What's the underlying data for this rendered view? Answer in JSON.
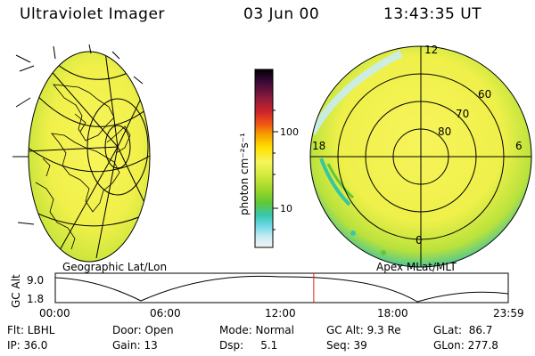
{
  "header": {
    "title": "Ultraviolet Imager",
    "date": "03 Jun 00",
    "time": "13:43:35 UT"
  },
  "colorbar": {
    "unit_label": "photon cm⁻²s⁻¹",
    "ticks": [
      "100",
      "10"
    ],
    "colors": [
      "#000000",
      "#3a0a3a",
      "#8b1b3b",
      "#d0242a",
      "#f05a12",
      "#f7a300",
      "#ffe000",
      "#f6f55a",
      "#cfe83a",
      "#9ad628",
      "#5fc838",
      "#38c6b0",
      "#6fd8e6",
      "#c9ecf2",
      "#f4f4f4"
    ]
  },
  "panels": {
    "left_caption": "Geographic Lat/Lon",
    "right_caption": "Apex MLat/MLT",
    "right_labels": {
      "lat_60": "60",
      "lat_70": "70",
      "lat_80": "80",
      "mlt_12": "12",
      "mlt_18": "18",
      "mlt_6": "6",
      "mlt_0": "0"
    }
  },
  "timeline": {
    "ylabel": "GC Alt",
    "ytick_top": "9.0",
    "ytick_bottom": "1.8",
    "xticks": [
      "00:00",
      "06:00",
      "12:00",
      "18:00",
      "23:59"
    ],
    "current_time_fraction": 0.5706,
    "marker_color": "#e0201c"
  },
  "status": {
    "row1": {
      "filter": "Flt: LBHL",
      "door": "Door: Open",
      "mode": "Mode: Normal",
      "gc_alt": "GC Alt: 9.3 Re",
      "glat": "GLat:  86.7"
    },
    "row2": {
      "ip": "IP: 36.0",
      "gain": "Gain: 13",
      "dsp": "Dsp:     5.1",
      "seq": "Seq: 39",
      "glon": "GLon: 277.8"
    }
  }
}
